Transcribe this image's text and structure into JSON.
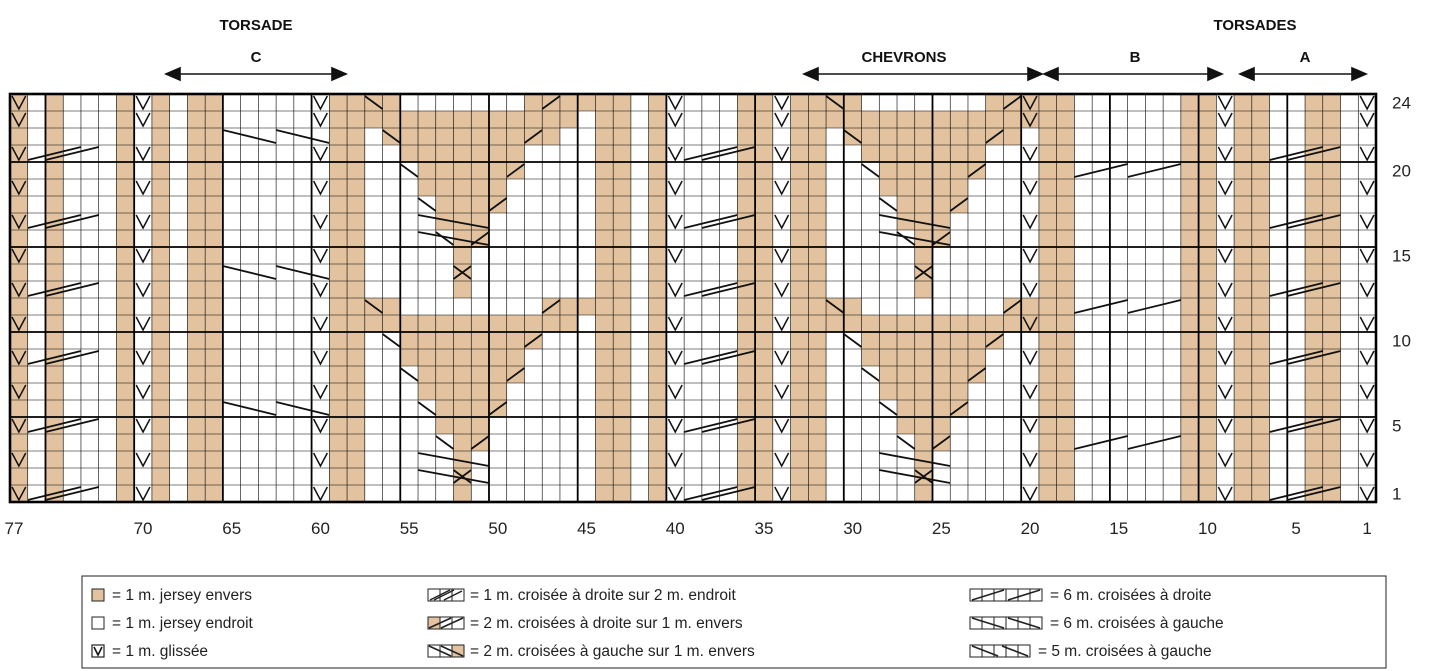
{
  "headers": {
    "torsade_c": "TORSADE",
    "torsade_c_letter": "C",
    "chevrons": "CHEVRONS",
    "torsades": "TORSADES",
    "torsades_b": "B",
    "torsades_a": "A"
  },
  "chart": {
    "columns": 77,
    "rows": 24,
    "bottom_labels": [
      "77",
      "70",
      "65",
      "60",
      "55",
      "50",
      "45",
      "40",
      "35",
      "30",
      "25",
      "20",
      "15",
      "10",
      "5",
      "1"
    ],
    "bottom_label_columns": [
      77,
      70,
      65,
      60,
      55,
      50,
      45,
      40,
      35,
      30,
      25,
      20,
      15,
      10,
      5,
      1
    ],
    "right_labels": [
      "24",
      "20",
      "15",
      "10",
      "5",
      "1"
    ],
    "right_label_rows": [
      24,
      20,
      15,
      10,
      5,
      1
    ],
    "fill_color": "#e2c29f",
    "line_color": "#000000"
  },
  "legend": {
    "items": [
      {
        "text": "= 1 m. jersey envers"
      },
      {
        "text": "= 1 m. jersey endroit"
      },
      {
        "text": "= 1 m. glissée"
      },
      {
        "text": "= 1 m. croisée à droite sur 2 m. endroit"
      },
      {
        "text": "= 2 m. croisées à droite sur 1 m. envers"
      },
      {
        "text": "= 2 m. croisées à gauche sur 1 m. envers"
      },
      {
        "text": "= 6 m. croisées à droite"
      },
      {
        "text": "= 6 m. croisées à gauche"
      },
      {
        "text": "= 5 m. croisées à gauche"
      }
    ]
  }
}
